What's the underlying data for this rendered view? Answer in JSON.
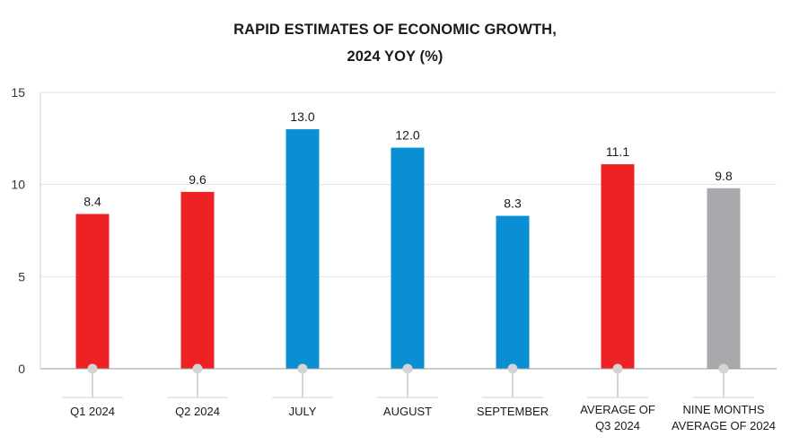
{
  "chart_data": {
    "type": "bar",
    "title_line1": "RAPID ESTIMATES OF ECONOMIC GROWTH,",
    "title_line2": "2024 YOY (%)",
    "categories": [
      [
        "Q1 2024"
      ],
      [
        "Q2 2024"
      ],
      [
        "JULY"
      ],
      [
        "AUGUST"
      ],
      [
        "SEPTEMBER"
      ],
      [
        "AVERAGE OF",
        "Q3 2024"
      ],
      [
        "NINE MONTHS",
        "AVERAGE OF 2024"
      ]
    ],
    "values": [
      8.4,
      9.6,
      13.0,
      12.0,
      8.3,
      11.1,
      9.8
    ],
    "value_labels": [
      "8.4",
      "9.6",
      "13.0",
      "12.0",
      "8.3",
      "11.1",
      "9.8"
    ],
    "colors": [
      "#ee2124",
      "#ee2124",
      "#0a8fd5",
      "#0a8fd5",
      "#0a8fd5",
      "#ee2124",
      "#a7a9ac"
    ],
    "yticks": [
      0,
      5,
      10,
      15
    ],
    "ylim": [
      0,
      15
    ],
    "xlabel": "",
    "ylabel": "",
    "grid": true
  }
}
